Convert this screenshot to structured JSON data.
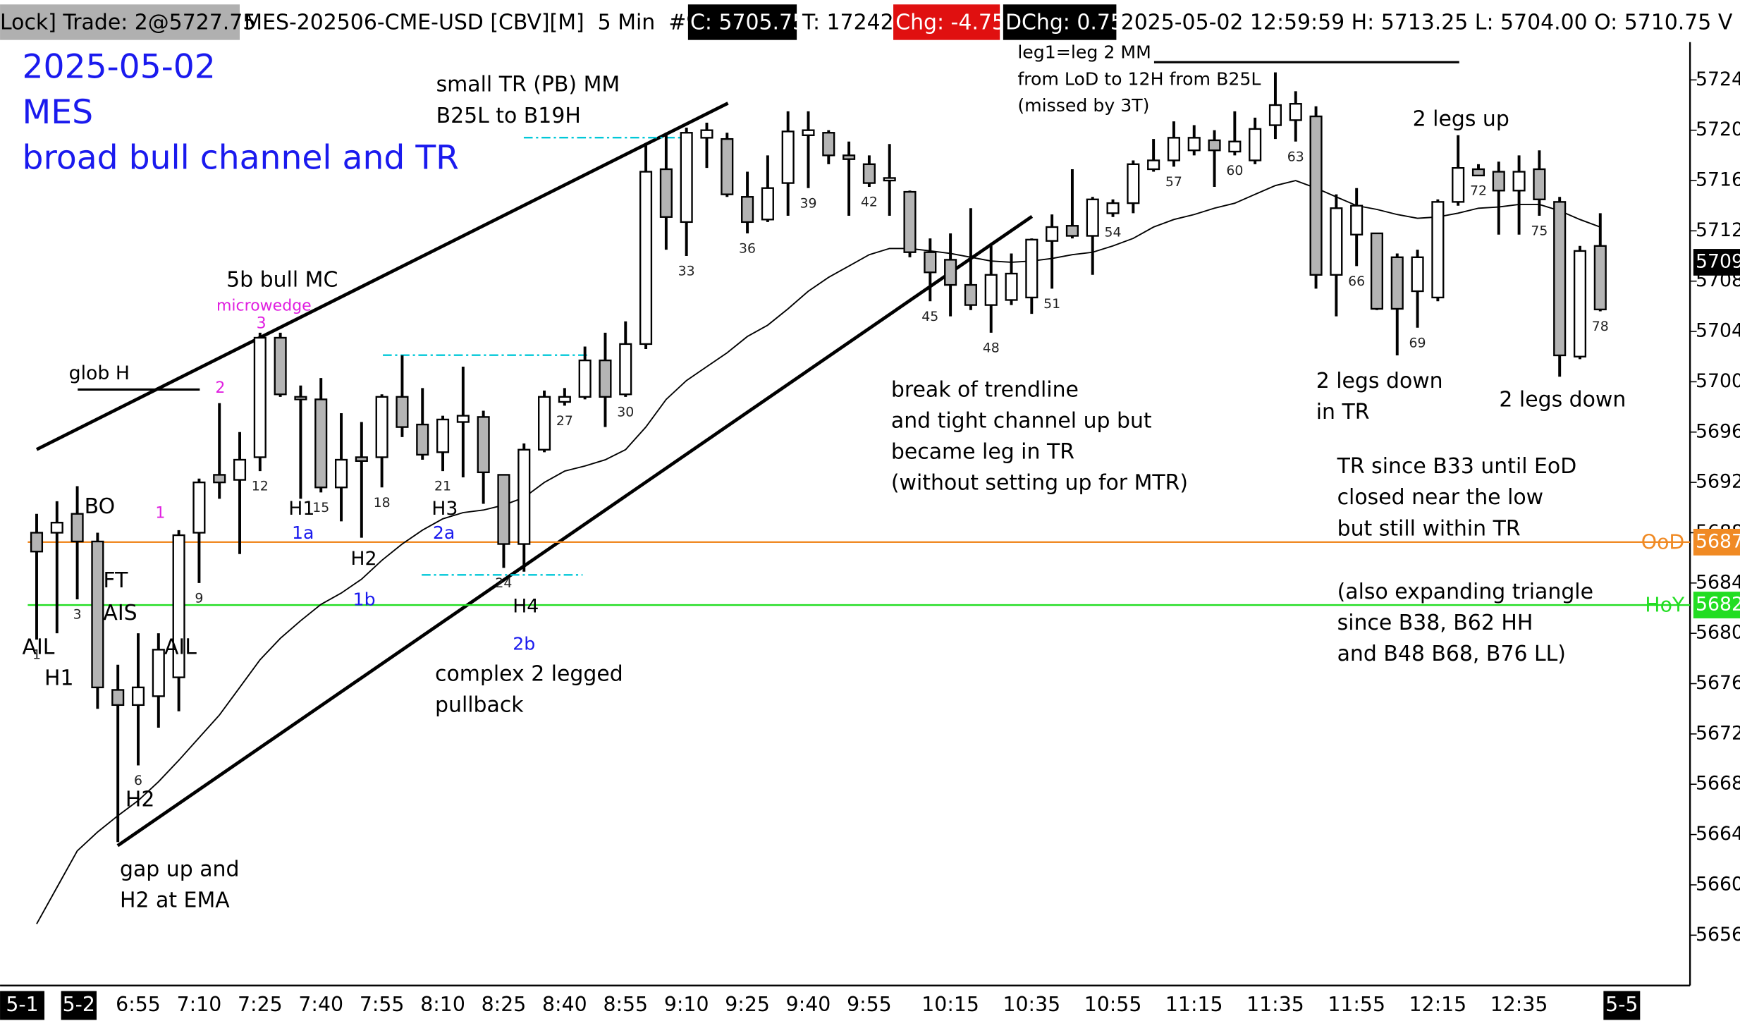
{
  "header": {
    "trade": "Lock] Trade: 2@5727.75",
    "symbol": "MES-202506-CME-USD [CBV][M]  5 Min  #9",
    "close": "C: 5705.75",
    "ticks": "T: 17242",
    "change": "Chg: -4.75",
    "day_change": "DChg: 0.75",
    "info": "2025-05-02 12:59:59 H: 5713.25 L: 5704.00 O: 5710.75 V"
  },
  "chart_data": {
    "type": "candlestick",
    "categories": [
      null,
      null,
      null,
      null,
      null,
      "6:55",
      null,
      null,
      "7:10",
      null,
      null,
      "7:25",
      null,
      null,
      "7:40",
      null,
      null,
      "7:55",
      null,
      null,
      "8:10",
      null,
      null,
      "8:25",
      null,
      null,
      "8:40",
      null,
      null,
      "8:55",
      null,
      null,
      "9:10",
      null,
      null,
      "9:25",
      null,
      null,
      "9:40",
      null,
      null,
      "9:55",
      null,
      null,
      null,
      "10:15",
      null,
      null,
      null,
      "10:35",
      null,
      null,
      null,
      "10:55",
      null,
      null,
      null,
      "11:15",
      null,
      null,
      null,
      "11:35",
      null,
      null,
      null,
      "11:55",
      null,
      null,
      null,
      "12:15",
      null,
      null,
      null,
      "12:35",
      null,
      null,
      null,
      null
    ],
    "open": [
      5688,
      5688,
      5689.5,
      5687.3,
      5675.5,
      5674.3,
      5675,
      5676.5,
      5688,
      5692.6,
      5692.2,
      5694,
      5703.5,
      5698.6,
      5698.6,
      5691.6,
      5694,
      5694,
      5698.8,
      5696.6,
      5694.4,
      5696.8,
      5697.2,
      5692.6,
      5687.1,
      5694.6,
      5698.4,
      5698.8,
      5701.7,
      5699,
      5703,
      5716.9,
      5712.7,
      5719.4,
      5719.3,
      5714.7,
      5712.9,
      5715.8,
      5719.6,
      5719.8,
      5718,
      5717.3,
      5716,
      5715.1,
      5710.3,
      5709.7,
      5707.7,
      5706.1,
      5706.5,
      5706.7,
      5711.2,
      5712.4,
      5711.6,
      5713.4,
      5714.2,
      5716.9,
      5717.6,
      5718.4,
      5719.2,
      5718.3,
      5717.6,
      5720.4,
      5720.8,
      5721.1,
      5708.5,
      5711.7,
      5711.8,
      5709.9,
      5707.2,
      5706.7,
      5714.3,
      5716.9,
      5716.7,
      5715.2,
      5716.9,
      5714.3,
      5702,
      5710.8
    ],
    "high": [
      5689.5,
      5690.5,
      5691.7,
      5688,
      5677.5,
      5680,
      5680,
      5688.2,
      5692.3,
      5698.3,
      5696,
      5703.9,
      5703.9,
      5699.7,
      5700.3,
      5697.5,
      5696.8,
      5699,
      5702.1,
      5699.5,
      5697.3,
      5701.2,
      5697.7,
      5692.6,
      5695.1,
      5699.3,
      5699.5,
      5702.8,
      5703.9,
      5704.8,
      5718.9,
      5719.8,
      5720.2,
      5720.6,
      5719.8,
      5716.7,
      5718,
      5721.5,
      5721.5,
      5720,
      5719.1,
      5718,
      5718.9,
      5715.2,
      5711.4,
      5711.8,
      5713.8,
      5710.8,
      5710.2,
      5711.4,
      5713.3,
      5716.9,
      5714.7,
      5714.5,
      5717.6,
      5719.3,
      5720.7,
      5720.4,
      5720,
      5721.5,
      5721,
      5724.6,
      5723.1,
      5721.9,
      5714.9,
      5715.4,
      5711.8,
      5710.2,
      5710.5,
      5714.5,
      5719.6,
      5717.3,
      5717.5,
      5718,
      5718.4,
      5714.7,
      5710.8,
      5713.4
    ],
    "low": [
      5679.5,
      5680,
      5682.7,
      5674,
      5663.4,
      5669.5,
      5672.5,
      5673.8,
      5684,
      5690.7,
      5686.3,
      5692.9,
      5698.8,
      5690.7,
      5691.2,
      5688.9,
      5687.6,
      5691.6,
      5695.6,
      5693.8,
      5692.9,
      5692.4,
      5690.3,
      5685.2,
      5684.9,
      5694.4,
      5698.1,
      5698.6,
      5696.4,
      5698.8,
      5702.6,
      5710.5,
      5710,
      5717,
      5714.7,
      5711.8,
      5712.7,
      5713.2,
      5715.4,
      5717.3,
      5713.2,
      5715.5,
      5713.2,
      5709.9,
      5706.4,
      5705.2,
      5705.7,
      5703.9,
      5706.1,
      5705.4,
      5707.4,
      5711.4,
      5708.5,
      5713.1,
      5713.4,
      5716.7,
      5717.1,
      5718,
      5715.5,
      5718,
      5717.3,
      5719.3,
      5719.1,
      5707.4,
      5705.2,
      5709.2,
      5705.7,
      5702.1,
      5704.3,
      5706.4,
      5714,
      5716.4,
      5711.7,
      5711.7,
      5713.2,
      5700.4,
      5701.8,
      5705.6
    ],
    "close": [
      5686.5,
      5688.8,
      5687.3,
      5675.7,
      5674.3,
      5675.7,
      5678.7,
      5687.8,
      5692,
      5692,
      5693.8,
      5703.5,
      5699,
      5698.8,
      5691.6,
      5693.8,
      5693.7,
      5698.8,
      5696.4,
      5694.2,
      5697,
      5697.3,
      5692.8,
      5687.1,
      5694.6,
      5698.8,
      5698.8,
      5701.7,
      5698.8,
      5703,
      5716.7,
      5713.1,
      5719.8,
      5720,
      5714.9,
      5712.7,
      5715.4,
      5719.9,
      5720,
      5718,
      5717.7,
      5715.8,
      5716.2,
      5710.3,
      5708.7,
      5707.7,
      5706.1,
      5708.5,
      5708.6,
      5711.3,
      5712.3,
      5711.6,
      5714.5,
      5714.2,
      5717.3,
      5717.6,
      5719.4,
      5719.4,
      5718.4,
      5719.1,
      5720.1,
      5722,
      5722.1,
      5708.5,
      5713.8,
      5714,
      5705.8,
      5705.8,
      5709.9,
      5714.3,
      5717,
      5716.4,
      5715.2,
      5716.7,
      5714.5,
      5702.1,
      5710.4,
      5705.75
    ],
    "ema": [
      5656.9,
      5659.8,
      5662.7,
      5664.2,
      5665.5,
      5666.7,
      5668.2,
      5669.9,
      5671.7,
      5673.5,
      5675.7,
      5677.9,
      5679.6,
      5681,
      5682.3,
      5683.2,
      5684.3,
      5685.8,
      5687.1,
      5688.2,
      5689.1,
      5689.6,
      5689.8,
      5690.2,
      5690.8,
      5692,
      5692.9,
      5693.3,
      5693.8,
      5694.6,
      5696.4,
      5698.6,
      5700.1,
      5701.2,
      5702.3,
      5703.6,
      5704.5,
      5705.8,
      5707.2,
      5708.3,
      5709.2,
      5710.1,
      5710.6,
      5710.6,
      5710.4,
      5710.2,
      5709.9,
      5709.6,
      5709.5,
      5709.6,
      5709.8,
      5710.1,
      5710.3,
      5710.8,
      5711.4,
      5712.3,
      5712.9,
      5713.3,
      5713.8,
      5714.2,
      5714.9,
      5715.6,
      5716,
      5715.4,
      5714.7,
      5714,
      5713.7,
      5713.3,
      5713,
      5713.1,
      5713.4,
      5713.8,
      5713.9,
      5714.1,
      5714.1,
      5713.6,
      5712.9,
      5712.3
    ],
    "bull_color": "#ffffff",
    "bear_color": "#b4b4b4",
    "ema_color": "#000000",
    "bar_numbers": [
      1,
      3,
      6,
      9,
      12,
      15,
      18,
      21,
      24,
      27,
      30,
      33,
      36,
      39,
      42,
      45,
      48,
      51,
      54,
      57,
      60,
      63,
      66,
      69,
      72,
      75,
      78
    ],
    "ylim": [
      5652,
      5727
    ],
    "yticks": [
      5656,
      5660,
      5664,
      5668,
      5672,
      5676,
      5680,
      5684,
      5688,
      5692,
      5696,
      5700,
      5704,
      5708,
      5712,
      5716,
      5720,
      5724
    ],
    "levels": [
      {
        "name": "OoD",
        "price": {
          "value": 5687.25,
          "label": "5687"
        },
        "color": "#f08a24"
      },
      {
        "name": "HoY",
        "price": {
          "value": 5682.25,
          "label": "5682"
        },
        "color": "#22dd22"
      }
    ],
    "price_marker": {
      "value": 5709.5,
      "label": "5709"
    },
    "date_markers": [
      "5-1",
      "5-2",
      "5-5"
    ],
    "annotations": [
      {
        "lines": [
          "2025-05-02",
          "MES",
          "broad bull channel and TR"
        ],
        "color": "#1a1aee"
      },
      {
        "lines": [
          "glob H"
        ],
        "color": "#000000"
      },
      {
        "lines": [
          "5b bull MC"
        ],
        "color": "#000000"
      },
      {
        "lines": [
          "microwedge"
        ],
        "color": "#e020e0"
      },
      {
        "lines": [
          "3"
        ],
        "color": "#e020e0"
      },
      {
        "lines": [
          "2"
        ],
        "color": "#e020e0"
      },
      {
        "lines": [
          "1"
        ],
        "color": "#e020e0"
      },
      {
        "lines": [
          "BO"
        ],
        "color": "#000000"
      },
      {
        "lines": [
          "FT"
        ],
        "color": "#000000"
      },
      {
        "lines": [
          "AIS"
        ],
        "color": "#000000"
      },
      {
        "lines": [
          "AIL"
        ],
        "color": "#000000"
      },
      {
        "lines": [
          "H1"
        ],
        "color": "#000000"
      },
      {
        "lines": [
          "AIL"
        ],
        "color": "#000000"
      },
      {
        "lines": [
          "H2"
        ],
        "color": "#000000"
      },
      {
        "lines": [
          "gap up and",
          "H2 at EMA"
        ],
        "color": "#000000"
      },
      {
        "lines": [
          "H1"
        ],
        "color": "#000000"
      },
      {
        "lines": [
          "1a"
        ],
        "color": "#1a1aee"
      },
      {
        "lines": [
          "H2"
        ],
        "color": "#000000"
      },
      {
        "lines": [
          "1b"
        ],
        "color": "#1a1aee"
      },
      {
        "lines": [
          "H3"
        ],
        "color": "#000000"
      },
      {
        "lines": [
          "2a"
        ],
        "color": "#1a1aee"
      },
      {
        "lines": [
          "H4"
        ],
        "color": "#000000"
      },
      {
        "lines": [
          "2b"
        ],
        "color": "#1a1aee"
      },
      {
        "lines": [
          "complex 2 legged",
          "pullback"
        ],
        "color": "#000000"
      },
      {
        "lines": [
          "small TR (PB) MM",
          "B25L to B19H"
        ],
        "color": "#000000"
      },
      {
        "lines": [
          "leg1=leg 2 MM",
          "from LoD to 12H from B25L",
          "(missed by 3T)"
        ],
        "color": "#000000"
      },
      {
        "lines": [
          "break of trendline",
          "and tight channel up but",
          "became leg in TR",
          "(without setting up for MTR)"
        ],
        "color": "#000000"
      },
      {
        "lines": [
          "2 legs up"
        ],
        "color": "#000000"
      },
      {
        "lines": [
          "2 legs down",
          "in TR"
        ],
        "color": "#000000"
      },
      {
        "lines": [
          "2 legs down"
        ],
        "color": "#000000"
      },
      {
        "lines": [
          "TR since B33 until EoD",
          "closed near the low",
          "but still within TR"
        ],
        "color": "#000000"
      },
      {
        "lines": [
          "(also expanding triangle",
          "since B38, B62 HH",
          "and B48 B68, B76 LL)"
        ],
        "color": "#000000"
      }
    ]
  }
}
